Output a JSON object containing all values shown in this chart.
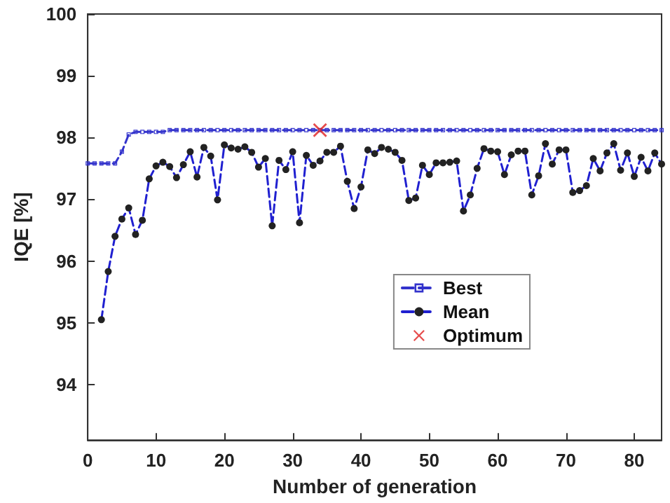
{
  "chart_data": {
    "type": "line",
    "xlabel": "Number of generation",
    "ylabel": "IQE [%]",
    "xlim": [
      0,
      84
    ],
    "xticks": [
      0,
      10,
      20,
      30,
      40,
      50,
      60,
      70,
      80
    ],
    "ylim": [
      93.1,
      100
    ],
    "yticks": [
      94,
      95,
      96,
      97,
      98,
      99,
      100
    ],
    "grid": false,
    "legend": "bottom right",
    "series": [
      {
        "name": "Best",
        "color": "#3333cc",
        "marker": "square",
        "line_style": "dashed",
        "x": [
          0,
          1,
          2,
          3,
          4,
          5,
          6,
          7,
          8,
          9,
          10,
          11,
          12,
          13,
          14,
          15,
          16,
          17,
          18,
          19,
          20,
          21,
          22,
          23,
          24,
          25,
          26,
          27,
          28,
          29,
          30,
          31,
          32,
          33,
          34,
          35,
          36,
          37,
          38,
          39,
          40,
          41,
          42,
          43,
          44,
          45,
          46,
          47,
          48,
          49,
          50,
          51,
          52,
          53,
          54,
          55,
          56,
          57,
          58,
          59,
          60,
          61,
          62,
          63,
          64,
          65,
          66,
          67,
          68,
          69,
          70,
          71,
          72,
          73,
          74,
          75,
          76,
          77,
          78,
          79,
          80,
          81,
          82,
          83,
          84
        ],
        "values": [
          97.58,
          97.58,
          97.58,
          97.58,
          97.58,
          97.77,
          98.05,
          98.09,
          98.09,
          98.09,
          98.09,
          98.09,
          98.12,
          98.12,
          98.12,
          98.12,
          98.12,
          98.12,
          98.12,
          98.12,
          98.12,
          98.12,
          98.12,
          98.12,
          98.12,
          98.12,
          98.12,
          98.12,
          98.12,
          98.12,
          98.12,
          98.12,
          98.12,
          98.12,
          98.12,
          98.12,
          98.12,
          98.12,
          98.12,
          98.12,
          98.12,
          98.12,
          98.12,
          98.12,
          98.12,
          98.12,
          98.12,
          98.12,
          98.12,
          98.12,
          98.12,
          98.12,
          98.12,
          98.12,
          98.12,
          98.12,
          98.12,
          98.12,
          98.12,
          98.12,
          98.12,
          98.12,
          98.12,
          98.12,
          98.12,
          98.12,
          98.12,
          98.12,
          98.12,
          98.12,
          98.12,
          98.12,
          98.12,
          98.12,
          98.12,
          98.12,
          98.12,
          98.12,
          98.12,
          98.12,
          98.12,
          98.12,
          98.12,
          98.12,
          98.12
        ]
      },
      {
        "name": "Mean",
        "color": "#2020d0",
        "marker": "circle",
        "line_style": "dashed",
        "x": [
          2,
          3,
          4,
          5,
          6,
          7,
          8,
          9,
          10,
          11,
          12,
          13,
          14,
          15,
          16,
          17,
          18,
          19,
          20,
          21,
          22,
          23,
          24,
          25,
          26,
          27,
          28,
          29,
          30,
          31,
          32,
          33,
          34,
          35,
          36,
          37,
          38,
          39,
          40,
          41,
          42,
          43,
          44,
          45,
          46,
          47,
          48,
          49,
          50,
          51,
          52,
          53,
          54,
          55,
          56,
          57,
          58,
          59,
          60,
          61,
          62,
          63,
          64,
          65,
          66,
          67,
          68,
          69,
          70,
          71,
          72,
          73,
          74,
          75,
          76,
          77,
          78,
          79,
          80,
          81,
          82,
          83,
          84
        ],
        "values": [
          95.05,
          95.83,
          96.4,
          96.68,
          96.86,
          96.43,
          96.66,
          97.33,
          97.54,
          97.6,
          97.53,
          97.35,
          97.56,
          97.77,
          97.36,
          97.84,
          97.7,
          96.99,
          97.88,
          97.83,
          97.81,
          97.85,
          97.76,
          97.52,
          97.66,
          96.57,
          97.63,
          97.48,
          97.77,
          96.62,
          97.71,
          97.55,
          97.62,
          97.76,
          97.76,
          97.86,
          97.29,
          96.85,
          97.2,
          97.8,
          97.74,
          97.84,
          97.81,
          97.76,
          97.63,
          96.98,
          97.02,
          97.55,
          97.4,
          97.59,
          97.59,
          97.6,
          97.62,
          96.81,
          97.07,
          97.5,
          97.82,
          97.78,
          97.77,
          97.4,
          97.72,
          97.78,
          97.78,
          97.07,
          97.38,
          97.9,
          97.57,
          97.8,
          97.8,
          97.11,
          97.14,
          97.22,
          97.66,
          97.46,
          97.75,
          97.9,
          97.47,
          97.75,
          97.37,
          97.68,
          97.46,
          97.75,
          97.57
        ]
      },
      {
        "name": "Optimum",
        "type": "scatter",
        "color": "#e02020",
        "marker": "cross",
        "x": [
          34
        ],
        "values": [
          98.12
        ]
      }
    ]
  }
}
